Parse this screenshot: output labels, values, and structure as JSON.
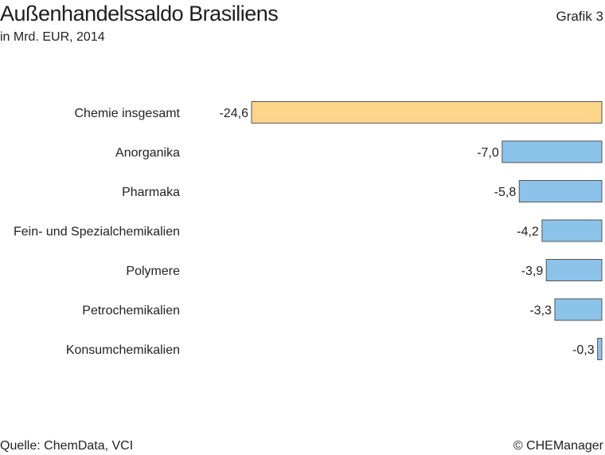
{
  "header": {
    "title": "Außenhandelssaldo Brasiliens",
    "subtitle": "in Mrd. EUR, 2014",
    "graphic_label": "Grafik 3"
  },
  "footer": {
    "source": "Quelle: ChemData, VCI",
    "copyright": "© CHEManager"
  },
  "colors": {
    "highlight": "#fdd58b",
    "bar": "#8cc3ea",
    "stroke": "#555555"
  },
  "chart_data": {
    "type": "bar",
    "orientation": "horizontal",
    "categories": [
      "Chemie insgesamt",
      "Anorganika",
      "Pharmaka",
      "Fein- und Spezialchemikalien",
      "Polymere",
      "Petrochemikalien",
      "Konsumchemikalien"
    ],
    "values": [
      -24.6,
      -7.0,
      -5.8,
      -4.2,
      -3.9,
      -3.3,
      -0.3
    ],
    "value_labels": [
      "-24,6",
      "-7,0",
      "-5,8",
      "-4,2",
      "-3,9",
      "-3,3",
      "-0,3"
    ],
    "highlight_category": "Chemie insgesamt",
    "grid": false,
    "legend": "none"
  }
}
